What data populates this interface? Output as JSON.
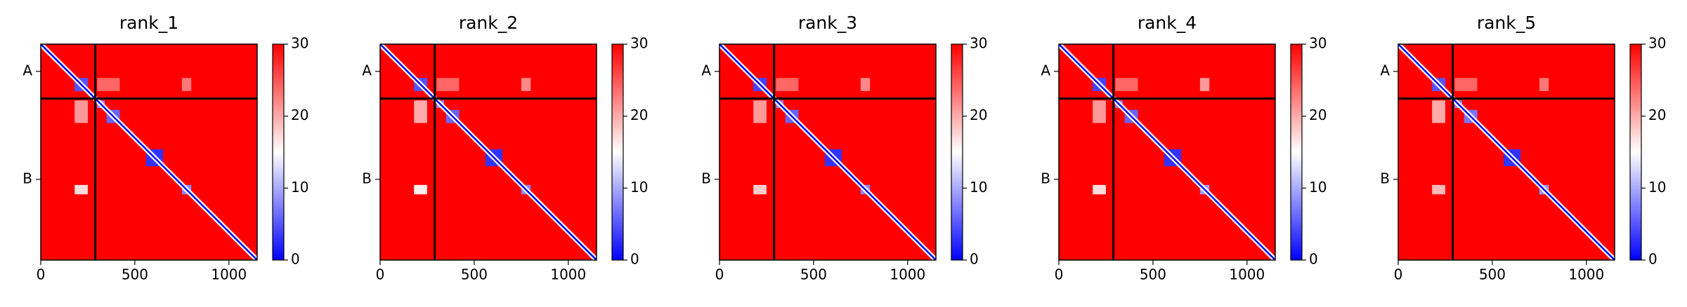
{
  "chart_data": [
    {
      "type": "heatmap",
      "title": "rank_1",
      "xlim": [
        0,
        1150
      ],
      "xticks": [
        0,
        500,
        1000
      ],
      "ylim": [
        1150,
        0
      ],
      "yticks": [
        {
          "value": 145,
          "label": "A"
        },
        {
          "value": 720,
          "label": "B"
        }
      ],
      "chain_breaks": [
        290
      ],
      "zlim": [
        0,
        30
      ],
      "zticks": [
        0,
        10,
        20,
        30
      ],
      "cmap": [
        "#0000ff",
        "#ffffff",
        "#ff0000"
      ],
      "background": 30,
      "diagonal": 0,
      "blocks": [
        {
          "x": [
            180,
            250
          ],
          "y": [
            180,
            250
          ],
          "value": 5
        },
        {
          "x": [
            300,
            340
          ],
          "y": [
            300,
            340
          ],
          "value": 8
        },
        {
          "x": [
            350,
            420
          ],
          "y": [
            350,
            420
          ],
          "value": 6
        },
        {
          "x": [
            560,
            650
          ],
          "y": [
            560,
            650
          ],
          "value": 3
        },
        {
          "x": [
            750,
            800
          ],
          "y": [
            750,
            800
          ],
          "value": 8
        },
        {
          "x": [
            180,
            250
          ],
          "y": [
            750,
            800
          ],
          "value": 17
        },
        {
          "x": [
            750,
            800
          ],
          "y": [
            180,
            250
          ],
          "value": 23
        },
        {
          "x": [
            300,
            420
          ],
          "y": [
            180,
            250
          ],
          "value": 24
        },
        {
          "x": [
            180,
            250
          ],
          "y": [
            300,
            420
          ],
          "value": 21
        }
      ]
    },
    {
      "type": "heatmap",
      "title": "rank_2",
      "xlim": [
        0,
        1150
      ],
      "xticks": [
        0,
        500,
        1000
      ],
      "ylim": [
        1150,
        0
      ],
      "yticks": [
        {
          "value": 145,
          "label": "A"
        },
        {
          "value": 720,
          "label": "B"
        }
      ],
      "chain_breaks": [
        290
      ],
      "zlim": [
        0,
        30
      ],
      "zticks": [
        0,
        10,
        20,
        30
      ],
      "cmap": [
        "#0000ff",
        "#ffffff",
        "#ff0000"
      ],
      "background": 30,
      "diagonal": 0,
      "blocks": [
        {
          "x": [
            180,
            250
          ],
          "y": [
            180,
            250
          ],
          "value": 5
        },
        {
          "x": [
            300,
            340
          ],
          "y": [
            300,
            340
          ],
          "value": 8
        },
        {
          "x": [
            350,
            420
          ],
          "y": [
            350,
            420
          ],
          "value": 6
        },
        {
          "x": [
            560,
            650
          ],
          "y": [
            560,
            650
          ],
          "value": 3
        },
        {
          "x": [
            750,
            800
          ],
          "y": [
            750,
            800
          ],
          "value": 8
        },
        {
          "x": [
            180,
            250
          ],
          "y": [
            750,
            800
          ],
          "value": 16
        },
        {
          "x": [
            750,
            800
          ],
          "y": [
            180,
            250
          ],
          "value": 22
        },
        {
          "x": [
            300,
            420
          ],
          "y": [
            180,
            250
          ],
          "value": 24
        },
        {
          "x": [
            180,
            250
          ],
          "y": [
            300,
            420
          ],
          "value": 20
        }
      ]
    },
    {
      "type": "heatmap",
      "title": "rank_3",
      "xlim": [
        0,
        1150
      ],
      "xticks": [
        0,
        500,
        1000
      ],
      "ylim": [
        1150,
        0
      ],
      "yticks": [
        {
          "value": 145,
          "label": "A"
        },
        {
          "value": 720,
          "label": "B"
        }
      ],
      "chain_breaks": [
        290
      ],
      "zlim": [
        0,
        30
      ],
      "zticks": [
        0,
        10,
        20,
        30
      ],
      "cmap": [
        "#0000ff",
        "#ffffff",
        "#ff0000"
      ],
      "background": 30,
      "diagonal": 0,
      "blocks": [
        {
          "x": [
            180,
            250
          ],
          "y": [
            180,
            250
          ],
          "value": 4
        },
        {
          "x": [
            300,
            340
          ],
          "y": [
            300,
            340
          ],
          "value": 8
        },
        {
          "x": [
            350,
            420
          ],
          "y": [
            350,
            420
          ],
          "value": 6
        },
        {
          "x": [
            560,
            650
          ],
          "y": [
            560,
            650
          ],
          "value": 3
        },
        {
          "x": [
            750,
            800
          ],
          "y": [
            750,
            800
          ],
          "value": 8
        },
        {
          "x": [
            180,
            250
          ],
          "y": [
            750,
            800
          ],
          "value": 18
        },
        {
          "x": [
            750,
            800
          ],
          "y": [
            180,
            250
          ],
          "value": 22
        },
        {
          "x": [
            300,
            420
          ],
          "y": [
            180,
            250
          ],
          "value": 24
        },
        {
          "x": [
            180,
            250
          ],
          "y": [
            300,
            420
          ],
          "value": 21
        }
      ]
    },
    {
      "type": "heatmap",
      "title": "rank_4",
      "xlim": [
        0,
        1150
      ],
      "xticks": [
        0,
        500,
        1000
      ],
      "ylim": [
        1150,
        0
      ],
      "yticks": [
        {
          "value": 145,
          "label": "A"
        },
        {
          "value": 720,
          "label": "B"
        }
      ],
      "chain_breaks": [
        290
      ],
      "zlim": [
        0,
        30
      ],
      "zticks": [
        0,
        10,
        20,
        30
      ],
      "cmap": [
        "#0000ff",
        "#ffffff",
        "#ff0000"
      ],
      "background": 30,
      "diagonal": 0,
      "blocks": [
        {
          "x": [
            180,
            250
          ],
          "y": [
            180,
            250
          ],
          "value": 4
        },
        {
          "x": [
            300,
            340
          ],
          "y": [
            300,
            340
          ],
          "value": 8
        },
        {
          "x": [
            350,
            420
          ],
          "y": [
            350,
            420
          ],
          "value": 6
        },
        {
          "x": [
            560,
            650
          ],
          "y": [
            560,
            650
          ],
          "value": 3
        },
        {
          "x": [
            750,
            800
          ],
          "y": [
            750,
            800
          ],
          "value": 9
        },
        {
          "x": [
            180,
            250
          ],
          "y": [
            750,
            800
          ],
          "value": 17
        },
        {
          "x": [
            750,
            800
          ],
          "y": [
            180,
            250
          ],
          "value": 21
        },
        {
          "x": [
            300,
            420
          ],
          "y": [
            180,
            250
          ],
          "value": 24
        },
        {
          "x": [
            180,
            250
          ],
          "y": [
            300,
            420
          ],
          "value": 21
        }
      ]
    },
    {
      "type": "heatmap",
      "title": "rank_5",
      "xlim": [
        0,
        1150
      ],
      "xticks": [
        0,
        500,
        1000
      ],
      "ylim": [
        1150,
        0
      ],
      "yticks": [
        {
          "value": 145,
          "label": "A"
        },
        {
          "value": 720,
          "label": "B"
        }
      ],
      "chain_breaks": [
        290
      ],
      "zlim": [
        0,
        30
      ],
      "zticks": [
        0,
        10,
        20,
        30
      ],
      "cmap": [
        "#0000ff",
        "#ffffff",
        "#ff0000"
      ],
      "background": 30,
      "diagonal": 0,
      "blocks": [
        {
          "x": [
            180,
            250
          ],
          "y": [
            180,
            250
          ],
          "value": 5
        },
        {
          "x": [
            300,
            340
          ],
          "y": [
            300,
            340
          ],
          "value": 8
        },
        {
          "x": [
            350,
            420
          ],
          "y": [
            350,
            420
          ],
          "value": 7
        },
        {
          "x": [
            560,
            650
          ],
          "y": [
            560,
            650
          ],
          "value": 3
        },
        {
          "x": [
            750,
            800
          ],
          "y": [
            750,
            800
          ],
          "value": 9
        },
        {
          "x": [
            180,
            250
          ],
          "y": [
            750,
            800
          ],
          "value": 19
        },
        {
          "x": [
            750,
            800
          ],
          "y": [
            180,
            250
          ],
          "value": 23
        },
        {
          "x": [
            300,
            420
          ],
          "y": [
            180,
            250
          ],
          "value": 24
        },
        {
          "x": [
            180,
            250
          ],
          "y": [
            300,
            420
          ],
          "value": 20
        }
      ]
    }
  ]
}
